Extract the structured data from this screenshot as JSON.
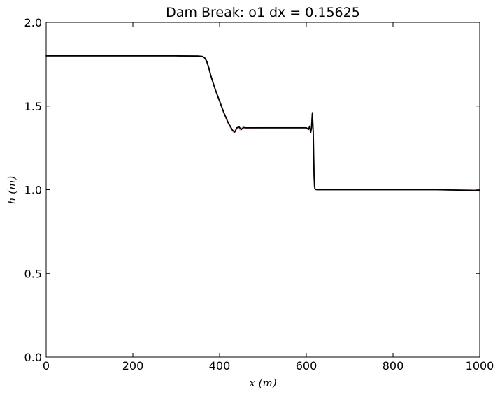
{
  "chart_data": {
    "type": "line",
    "title": "Dam Break: o1 dx = 0.15625",
    "xlabel": "x (m)",
    "ylabel": "h (m)",
    "xlim": [
      0,
      1000
    ],
    "ylim": [
      0.0,
      2.0
    ],
    "x_ticks": [
      "0",
      "200",
      "400",
      "600",
      "800",
      "1000"
    ],
    "y_ticks": [
      "0.0",
      "0.5",
      "1.0",
      "1.5",
      "2.0"
    ],
    "grid": false,
    "legend": "none",
    "series": [
      {
        "color": "#000000",
        "x": [
          0,
          100,
          200,
          300,
          350,
          360,
          365,
          370,
          375,
          380,
          390,
          400,
          410,
          420,
          430,
          435,
          440,
          445,
          450,
          455,
          460,
          500,
          550,
          600,
          605,
          608,
          610,
          612,
          614,
          616,
          617,
          618,
          619,
          620,
          622,
          625,
          640,
          700,
          800,
          900,
          1000
        ],
        "y": [
          1.8,
          1.8,
          1.8,
          1.8,
          1.799,
          1.797,
          1.79,
          1.77,
          1.73,
          1.68,
          1.6,
          1.53,
          1.46,
          1.4,
          1.355,
          1.345,
          1.37,
          1.375,
          1.36,
          1.372,
          1.37,
          1.37,
          1.37,
          1.37,
          1.36,
          1.38,
          1.34,
          1.37,
          1.46,
          1.34,
          1.2,
          1.08,
          1.02,
          1.005,
          1.001,
          1.0,
          1.0,
          1.0,
          1.0,
          1.0,
          0.995
        ]
      },
      {
        "color": "#e8a7a7",
        "x": [
          0,
          100,
          200,
          300,
          350,
          360,
          365,
          370,
          375,
          380,
          390,
          400,
          410,
          420,
          430,
          434,
          438,
          443,
          448,
          453,
          458,
          500,
          550,
          600,
          605,
          608,
          610,
          612,
          614,
          616,
          617,
          618,
          619,
          620,
          622,
          625,
          640,
          700,
          800,
          900,
          1000
        ],
        "y": [
          1.8,
          1.8,
          1.8,
          1.8,
          1.799,
          1.796,
          1.788,
          1.768,
          1.728,
          1.678,
          1.598,
          1.528,
          1.458,
          1.396,
          1.35,
          1.34,
          1.362,
          1.372,
          1.358,
          1.37,
          1.369,
          1.37,
          1.37,
          1.37,
          1.362,
          1.378,
          1.342,
          1.368,
          1.45,
          1.345,
          1.21,
          1.09,
          1.025,
          1.006,
          1.001,
          1.0,
          1.0,
          1.0,
          1.0,
          1.0,
          0.996
        ]
      }
    ]
  }
}
